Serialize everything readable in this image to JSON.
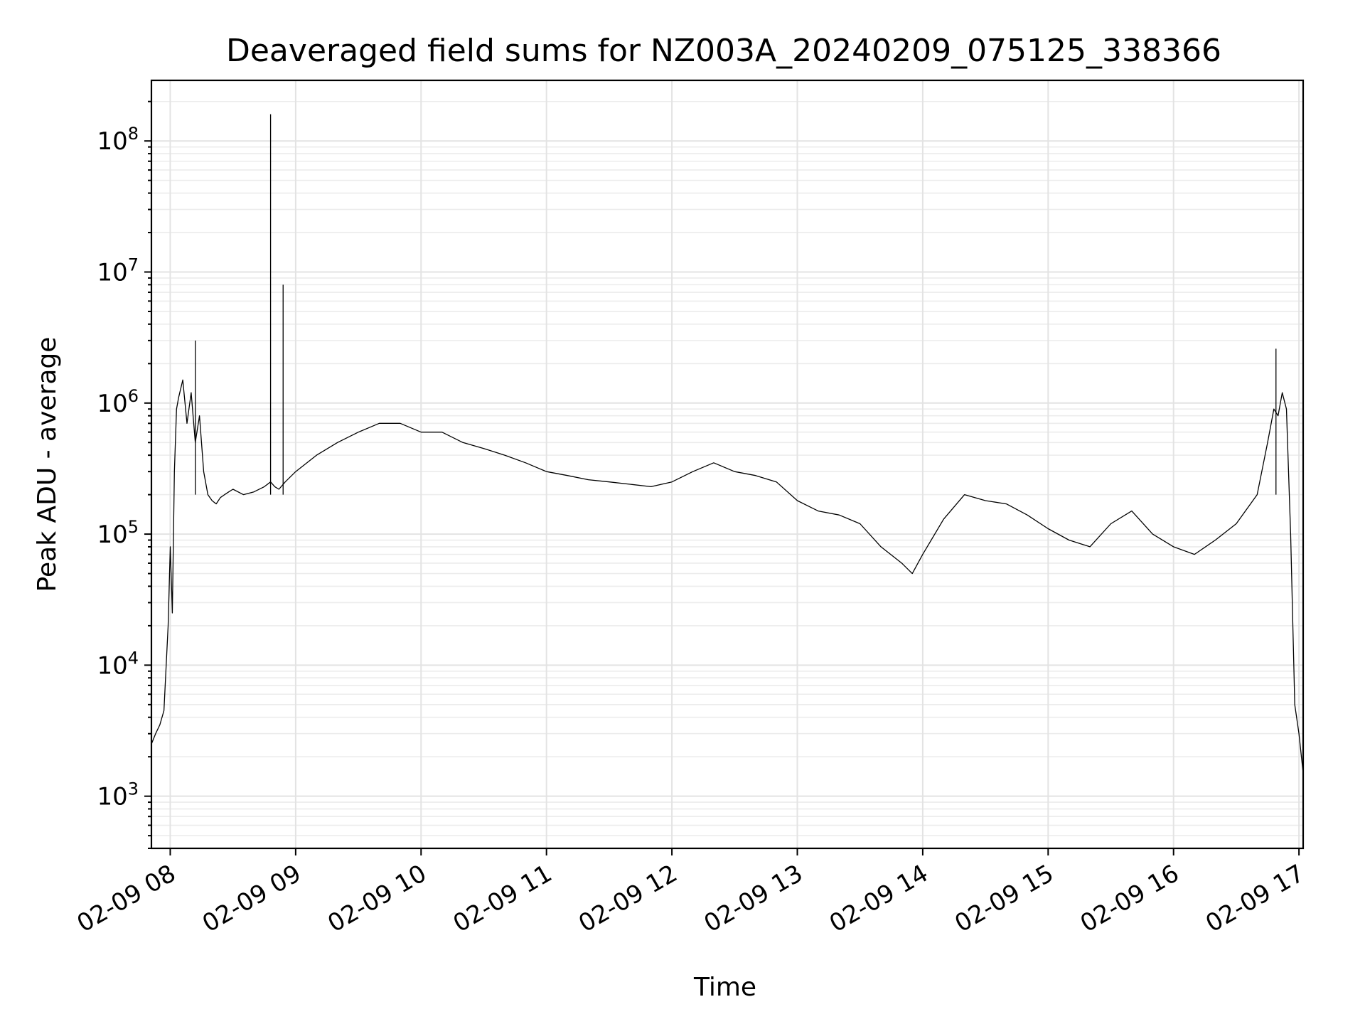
{
  "chart_data": {
    "type": "line",
    "title": "Deaveraged field sums for NZ003A_20240209_075125_338366",
    "xlabel": "Time",
    "ylabel": "Peak ADU - average",
    "yscale": "log",
    "xlim": [
      "2024-02-09 07:51",
      "2024-02-09 17:02"
    ],
    "ylim": [
      400,
      290000000
    ],
    "grid": true,
    "x_ticks": [
      "02-09 08",
      "02-09 09",
      "02-09 10",
      "02-09 11",
      "02-09 12",
      "02-09 13",
      "02-09 14",
      "02-09 15",
      "02-09 16",
      "02-09 17"
    ],
    "y_ticks": [
      {
        "base": "10",
        "exp": "3",
        "value": 1000
      },
      {
        "base": "10",
        "exp": "4",
        "value": 10000
      },
      {
        "base": "10",
        "exp": "5",
        "value": 100000
      },
      {
        "base": "10",
        "exp": "6",
        "value": 1000000
      },
      {
        "base": "10",
        "exp": "7",
        "value": 10000000
      },
      {
        "base": "10",
        "exp": "8",
        "value": 100000000
      }
    ],
    "color": "#000000",
    "series": [
      {
        "x": [
          "07:51",
          "07:53",
          "07:55",
          "07:57",
          "07:59",
          "08:00",
          "08:01",
          "08:02",
          "08:03",
          "08:04",
          "08:06",
          "08:08",
          "08:10",
          "08:12",
          "08:14",
          "08:16",
          "08:18",
          "08:20",
          "08:22",
          "08:24",
          "08:26",
          "08:28",
          "08:30",
          "08:35",
          "08:40",
          "08:45",
          "08:48",
          "08:50",
          "08:52",
          "08:55",
          "09:00",
          "09:10",
          "09:20",
          "09:30",
          "09:40",
          "09:50",
          "10:00",
          "10:10",
          "10:20",
          "10:30",
          "10:40",
          "10:50",
          "11:00",
          "11:10",
          "11:20",
          "11:30",
          "11:40",
          "11:50",
          "12:00",
          "12:10",
          "12:20",
          "12:30",
          "12:40",
          "12:50",
          "13:00",
          "13:10",
          "13:20",
          "13:30",
          "13:40",
          "13:50",
          "13:55",
          "14:00",
          "14:10",
          "14:20",
          "14:30",
          "14:40",
          "14:50",
          "15:00",
          "15:10",
          "15:20",
          "15:30",
          "15:40",
          "15:50",
          "16:00",
          "16:10",
          "16:20",
          "16:30",
          "16:40",
          "16:45",
          "16:48",
          "16:50",
          "16:52",
          "16:54",
          "16:56",
          "16:58",
          "17:00",
          "17:02"
        ],
        "y": [
          2500,
          3000,
          3500,
          4500,
          20000,
          80000,
          25000,
          300000,
          900000,
          1100000,
          1500000,
          700000,
          1200000,
          500000,
          800000,
          300000,
          200000,
          180000,
          170000,
          190000,
          200000,
          210000,
          220000,
          200000,
          210000,
          230000,
          250000,
          230000,
          220000,
          250000,
          300000,
          400000,
          500000,
          600000,
          700000,
          700000,
          600000,
          600000,
          500000,
          450000,
          400000,
          350000,
          300000,
          280000,
          260000,
          250000,
          240000,
          230000,
          250000,
          300000,
          350000,
          300000,
          280000,
          250000,
          180000,
          150000,
          140000,
          120000,
          80000,
          60000,
          50000,
          70000,
          130000,
          200000,
          180000,
          170000,
          140000,
          110000,
          90000,
          80000,
          120000,
          150000,
          100000,
          80000,
          70000,
          90000,
          120000,
          200000,
          500000,
          900000,
          800000,
          1200000,
          900000,
          100000,
          5000,
          3000,
          1500
        ]
      }
    ],
    "spikes": [
      {
        "x": "08:48",
        "y": 160000000
      },
      {
        "x": "08:54",
        "y": 8000000
      },
      {
        "x": "08:12",
        "y": 3000000
      },
      {
        "x": "16:49",
        "y": 2600000
      }
    ]
  }
}
